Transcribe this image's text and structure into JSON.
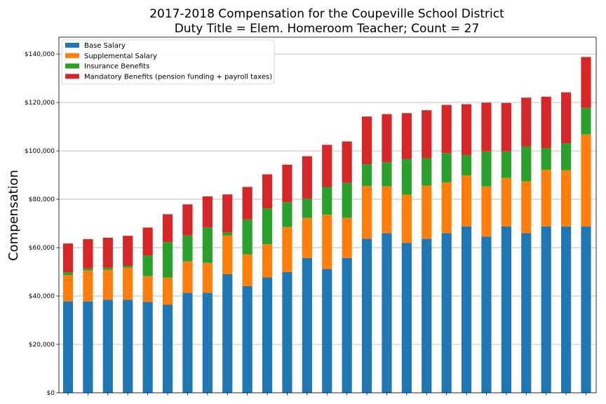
{
  "chart_data": {
    "type": "bar",
    "stacked": true,
    "title": "2017-2018 Compensation for the Coupeville School District",
    "subtitle": "Duty Title = Elem. Homeroom Teacher; Count = 27",
    "xlabel": "",
    "ylabel": "Compensation",
    "ylim": [
      0,
      147000
    ],
    "yticks": [
      0,
      20000,
      40000,
      60000,
      80000,
      100000,
      120000,
      140000
    ],
    "ytick_labels": [
      "$0",
      "$20,000",
      "$40,000",
      "$60,000",
      "$80,000",
      "$100,000",
      "$120,000",
      "$140,000"
    ],
    "grid": "horizontal",
    "legend_position": "top-left",
    "series": [
      {
        "name": "Base Salary",
        "color": "#1f77b4",
        "values": [
          37800,
          37800,
          38500,
          38500,
          37600,
          36500,
          41300,
          41300,
          49000,
          44100,
          47700,
          49900,
          55700,
          51200,
          55700,
          63700,
          66000,
          62000,
          63700,
          66000,
          68800,
          64600,
          68800,
          66000,
          68800,
          68800,
          68800
        ]
      },
      {
        "name": "Supplemental Salary",
        "color": "#ff7f0e",
        "values": [
          10900,
          12700,
          12300,
          13200,
          10600,
          11100,
          13000,
          12400,
          16000,
          13100,
          13700,
          18600,
          16600,
          22400,
          16600,
          21800,
          19400,
          19900,
          21900,
          21000,
          21100,
          20700,
          20000,
          21400,
          23400,
          23200,
          38000
        ]
      },
      {
        "name": "Insurance Benefits",
        "color": "#2ca02c",
        "values": [
          1100,
          900,
          900,
          800,
          8600,
          14700,
          10700,
          14700,
          1300,
          14500,
          14800,
          10300,
          8000,
          11500,
          14500,
          9000,
          9900,
          14800,
          11400,
          12100,
          8400,
          14500,
          11000,
          14400,
          9000,
          11200,
          11000
        ]
      },
      {
        "name": "Mandatory Benefits (pension funding + payroll taxes)",
        "color": "#d62728",
        "values": [
          11900,
          12100,
          12400,
          12400,
          11500,
          11500,
          12900,
          12800,
          15700,
          13400,
          14100,
          15500,
          17500,
          17400,
          17100,
          19700,
          19900,
          18900,
          19800,
          19900,
          21000,
          20100,
          20000,
          20200,
          21200,
          21000,
          21000
        ]
      }
    ]
  }
}
